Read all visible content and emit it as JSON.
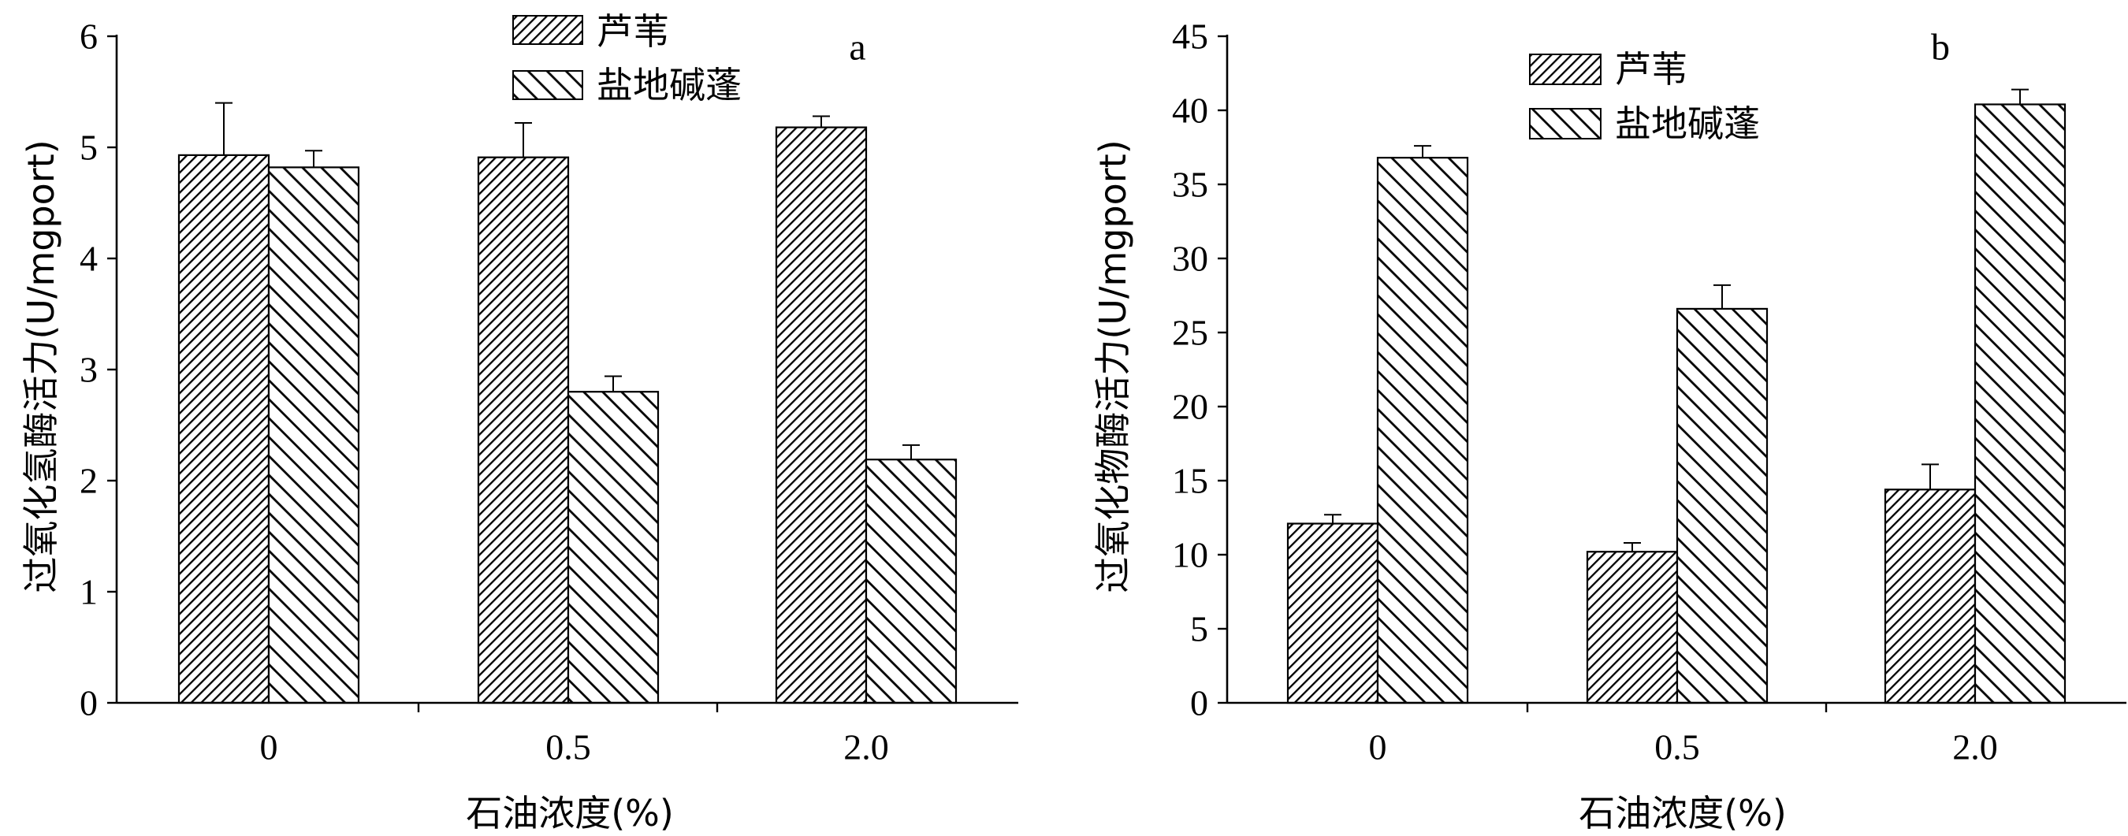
{
  "chart_data": [
    {
      "type": "bar",
      "panel_label": "a",
      "categories": [
        "0",
        "0.5",
        "2.0"
      ],
      "series": [
        {
          "name": "芦苇",
          "values": [
            4.93,
            4.91,
            5.18
          ],
          "error": [
            0.47,
            0.31,
            0.1
          ],
          "hatch": "forward-diagonal"
        },
        {
          "name": "盐地碱蓬",
          "values": [
            4.82,
            2.8,
            2.19
          ],
          "error": [
            0.15,
            0.14,
            0.13
          ],
          "hatch": "backward-diagonal"
        }
      ],
      "xlabel": "石油浓度(%)",
      "ylabel": "过氧化氢酶活力(U/mgport)",
      "ylim": [
        0,
        6
      ],
      "yticks": [
        "0",
        "1",
        "2",
        "3",
        "4",
        "5",
        "6"
      ],
      "grid": false,
      "legend_position": "top-center",
      "error_bars": "upper-only"
    },
    {
      "type": "bar",
      "panel_label": "b",
      "categories": [
        "0",
        "0.5",
        "2.0"
      ],
      "series": [
        {
          "name": "芦苇",
          "values": [
            12.1,
            10.2,
            14.4
          ],
          "error": [
            0.6,
            0.6,
            1.7
          ],
          "hatch": "forward-diagonal"
        },
        {
          "name": "盐地碱蓬",
          "values": [
            36.8,
            26.6,
            40.4
          ],
          "error": [
            0.8,
            1.6,
            1.0
          ],
          "hatch": "backward-diagonal"
        }
      ],
      "xlabel": "石油浓度(%)",
      "ylabel": "过氧化物酶活力(U/mgport)",
      "ylim": [
        0,
        45
      ],
      "yticks": [
        "0",
        "5",
        "10",
        "15",
        "20",
        "25",
        "30",
        "35",
        "40",
        "45"
      ],
      "grid": false,
      "legend_position": "top-center",
      "error_bars": "upper-only"
    }
  ]
}
